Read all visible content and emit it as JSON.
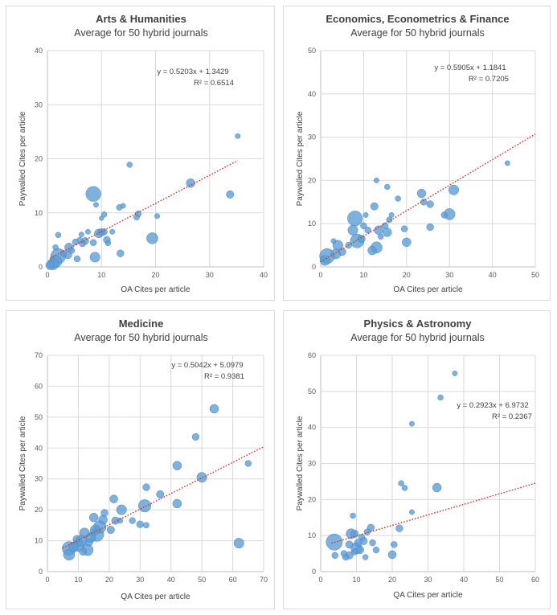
{
  "chart_data": [
    {
      "type": "scatter",
      "title": "Arts & Humanities",
      "subtitle": "Average for 50 hybrid journals",
      "xlabel": "OA Cites per article",
      "ylabel": "Paywalled Cites per article",
      "xlim": [
        0,
        40
      ],
      "ylim": [
        0,
        40
      ],
      "xticks": [
        0,
        10,
        20,
        30,
        40
      ],
      "yticks": [
        0,
        10,
        20,
        30,
        40
      ],
      "grid": true,
      "trendline": {
        "slope": 0.5203,
        "intercept": 1.3429,
        "x_range": [
          0.5,
          35.2
        ]
      },
      "equation": "y = 0.5203x + 1.3429",
      "r_squared": "R² = 0.6514",
      "points": [
        {
          "x": 35.2,
          "y": 24.2,
          "s": 1
        },
        {
          "x": 26.5,
          "y": 15.5,
          "s": 2.5
        },
        {
          "x": 33.8,
          "y": 13.4,
          "s": 2
        },
        {
          "x": 15.2,
          "y": 18.9,
          "s": 1.2
        },
        {
          "x": 8.5,
          "y": 13.5,
          "s": 5
        },
        {
          "x": 16.8,
          "y": 9.8,
          "s": 1.5
        },
        {
          "x": 16.5,
          "y": 9.2,
          "s": 1.3
        },
        {
          "x": 20.3,
          "y": 9.4,
          "s": 1
        },
        {
          "x": 19.4,
          "y": 5.3,
          "s": 3.5
        },
        {
          "x": 13.3,
          "y": 11.0,
          "s": 1.3
        },
        {
          "x": 14.0,
          "y": 11.3,
          "s": 1
        },
        {
          "x": 9.5,
          "y": 6.2,
          "s": 2.5
        },
        {
          "x": 10.0,
          "y": 6.4,
          "s": 2
        },
        {
          "x": 10.5,
          "y": 6.5,
          "s": 1.5
        },
        {
          "x": 11.0,
          "y": 5.0,
          "s": 1.8
        },
        {
          "x": 11.2,
          "y": 4.4,
          "s": 1.2
        },
        {
          "x": 13.5,
          "y": 2.5,
          "s": 1.8
        },
        {
          "x": 8.8,
          "y": 1.8,
          "s": 3
        },
        {
          "x": 8.5,
          "y": 4.5,
          "s": 1.5
        },
        {
          "x": 9.0,
          "y": 11.5,
          "s": 1
        },
        {
          "x": 10.5,
          "y": 9.7,
          "s": 1.2
        },
        {
          "x": 10.0,
          "y": 9.0,
          "s": 0.8
        },
        {
          "x": 7.0,
          "y": 4.8,
          "s": 1.8
        },
        {
          "x": 6.5,
          "y": 4.3,
          "s": 1.5
        },
        {
          "x": 6.0,
          "y": 5.0,
          "s": 1.2
        },
        {
          "x": 5.2,
          "y": 4.6,
          "s": 1.5
        },
        {
          "x": 4.0,
          "y": 3.6,
          "s": 2.5
        },
        {
          "x": 3.8,
          "y": 2.2,
          "s": 2
        },
        {
          "x": 5.5,
          "y": 1.5,
          "s": 1.5
        },
        {
          "x": 2.0,
          "y": 2.0,
          "s": 5
        },
        {
          "x": 1.5,
          "y": 1.0,
          "s": 4
        },
        {
          "x": 1.0,
          "y": 0.5,
          "s": 3.5
        },
        {
          "x": 0.5,
          "y": 0.3,
          "s": 2.5
        },
        {
          "x": 2.0,
          "y": 5.9,
          "s": 1.2
        },
        {
          "x": 1.5,
          "y": 3.6,
          "s": 1.2
        },
        {
          "x": 3.0,
          "y": 2.5,
          "s": 1.5
        },
        {
          "x": 6.3,
          "y": 6.0,
          "s": 1
        },
        {
          "x": 12.0,
          "y": 6.5,
          "s": 1
        },
        {
          "x": 7.5,
          "y": 6.5,
          "s": 1
        },
        {
          "x": 4.5,
          "y": 3.0,
          "s": 1.3
        }
      ]
    },
    {
      "type": "scatter",
      "title": "Economics, Econometrics & Finance",
      "subtitle": "Average for 50 hybrid journals",
      "xlabel": "OA Cites per article",
      "ylabel": "Paywalled Cites per article",
      "xlim": [
        0,
        50
      ],
      "ylim": [
        0,
        50
      ],
      "xticks": [
        0,
        10,
        20,
        30,
        40,
        50
      ],
      "yticks": [
        0,
        10,
        20,
        30,
        40,
        50
      ],
      "grid": true,
      "trendline": {
        "slope": 0.5905,
        "intercept": 1.1841,
        "x_range": [
          0,
          50
        ]
      },
      "equation": "y = 0.5905x + 1.1841",
      "r_squared": "R² = 0.7205",
      "points": [
        {
          "x": 43.5,
          "y": 24.0,
          "s": 1
        },
        {
          "x": 31.0,
          "y": 17.8,
          "s": 3
        },
        {
          "x": 30.0,
          "y": 12.2,
          "s": 3.5
        },
        {
          "x": 28.8,
          "y": 12.0,
          "s": 1.5
        },
        {
          "x": 25.5,
          "y": 14.5,
          "s": 1.8
        },
        {
          "x": 23.5,
          "y": 17.0,
          "s": 2.5
        },
        {
          "x": 24.0,
          "y": 15.0,
          "s": 1.5
        },
        {
          "x": 25.5,
          "y": 9.2,
          "s": 1.8
        },
        {
          "x": 20.0,
          "y": 5.7,
          "s": 2.5
        },
        {
          "x": 19.5,
          "y": 8.8,
          "s": 1.5
        },
        {
          "x": 18.0,
          "y": 15.8,
          "s": 1.2
        },
        {
          "x": 15.5,
          "y": 18.5,
          "s": 1.2
        },
        {
          "x": 13.0,
          "y": 20.0,
          "s": 1
        },
        {
          "x": 12.5,
          "y": 14.0,
          "s": 2
        },
        {
          "x": 16.0,
          "y": 10.9,
          "s": 1.3
        },
        {
          "x": 15.0,
          "y": 9.5,
          "s": 1.5
        },
        {
          "x": 15.5,
          "y": 8.0,
          "s": 2.5
        },
        {
          "x": 13.0,
          "y": 4.5,
          "s": 3.5
        },
        {
          "x": 12.0,
          "y": 3.8,
          "s": 2.5
        },
        {
          "x": 13.5,
          "y": 8.5,
          "s": 2.5
        },
        {
          "x": 10.0,
          "y": 9.5,
          "s": 1.5
        },
        {
          "x": 8.0,
          "y": 11.2,
          "s": 5
        },
        {
          "x": 8.5,
          "y": 6.0,
          "s": 4.5
        },
        {
          "x": 9.5,
          "y": 6.5,
          "s": 2
        },
        {
          "x": 7.5,
          "y": 8.5,
          "s": 3
        },
        {
          "x": 6.5,
          "y": 5.0,
          "s": 1.5
        },
        {
          "x": 4.0,
          "y": 5.0,
          "s": 3
        },
        {
          "x": 3.5,
          "y": 3.0,
          "s": 3
        },
        {
          "x": 5.0,
          "y": 3.5,
          "s": 2
        },
        {
          "x": 1.5,
          "y": 2.5,
          "s": 5
        },
        {
          "x": 1.0,
          "y": 1.5,
          "s": 3
        },
        {
          "x": 11.0,
          "y": 8.5,
          "s": 1.5
        },
        {
          "x": 14.0,
          "y": 7.0,
          "s": 1.2
        },
        {
          "x": 16.5,
          "y": 12.0,
          "s": 1
        },
        {
          "x": 10.5,
          "y": 12.0,
          "s": 1
        },
        {
          "x": 3.0,
          "y": 6.0,
          "s": 1
        }
      ]
    },
    {
      "type": "scatter",
      "title": "Medicine",
      "subtitle": "Average for 50 hybrid journals",
      "xlabel": "QA Cites per article",
      "ylabel": "Paywalled Cites per article",
      "xlim": [
        0,
        70
      ],
      "ylim": [
        0,
        70
      ],
      "xticks": [
        0,
        10,
        20,
        30,
        40,
        50,
        60,
        70
      ],
      "yticks": [
        0,
        10,
        20,
        30,
        40,
        50,
        60,
        70
      ],
      "grid": true,
      "trendline": {
        "slope": 0.5042,
        "intercept": 5.0979,
        "x_range": [
          5,
          70
        ]
      },
      "equation": "y = 0.5042x + 5.0979",
      "r_squared": "R² = 0.9381",
      "points": [
        {
          "x": 54.0,
          "y": 52.7,
          "s": 2.5
        },
        {
          "x": 48.0,
          "y": 43.6,
          "s": 1.8
        },
        {
          "x": 65.0,
          "y": 35.0,
          "s": 1.5
        },
        {
          "x": 62.0,
          "y": 9.2,
          "s": 3
        },
        {
          "x": 50.0,
          "y": 30.5,
          "s": 3
        },
        {
          "x": 42.0,
          "y": 34.3,
          "s": 2.5
        },
        {
          "x": 42.0,
          "y": 22.0,
          "s": 2.5
        },
        {
          "x": 36.5,
          "y": 25.0,
          "s": 2
        },
        {
          "x": 32.0,
          "y": 27.3,
          "s": 1.8
        },
        {
          "x": 31.5,
          "y": 21.3,
          "s": 4
        },
        {
          "x": 32.0,
          "y": 15.0,
          "s": 1.3
        },
        {
          "x": 30.0,
          "y": 15.3,
          "s": 1.8
        },
        {
          "x": 27.5,
          "y": 16.5,
          "s": 1.5
        },
        {
          "x": 24.0,
          "y": 20.0,
          "s": 3
        },
        {
          "x": 21.5,
          "y": 23.5,
          "s": 2.2
        },
        {
          "x": 22.0,
          "y": 16.5,
          "s": 2
        },
        {
          "x": 20.5,
          "y": 13.5,
          "s": 2
        },
        {
          "x": 18.5,
          "y": 19.0,
          "s": 1.8
        },
        {
          "x": 18.0,
          "y": 16.8,
          "s": 2.5
        },
        {
          "x": 17.0,
          "y": 14.5,
          "s": 4
        },
        {
          "x": 16.0,
          "y": 12.0,
          "s": 4.5
        },
        {
          "x": 15.0,
          "y": 17.5,
          "s": 2.5
        },
        {
          "x": 14.0,
          "y": 11.0,
          "s": 3
        },
        {
          "x": 13.0,
          "y": 7.0,
          "s": 3.5
        },
        {
          "x": 12.0,
          "y": 12.5,
          "s": 3
        },
        {
          "x": 11.0,
          "y": 10.0,
          "s": 3.5
        },
        {
          "x": 10.0,
          "y": 8.5,
          "s": 4
        },
        {
          "x": 9.5,
          "y": 10.5,
          "s": 2
        },
        {
          "x": 8.5,
          "y": 8.0,
          "s": 3
        },
        {
          "x": 7.0,
          "y": 7.5,
          "s": 4.5
        },
        {
          "x": 7.0,
          "y": 5.5,
          "s": 3.5
        },
        {
          "x": 15.5,
          "y": 13.5,
          "s": 3
        },
        {
          "x": 13.5,
          "y": 9.5,
          "s": 2
        },
        {
          "x": 23.5,
          "y": 16.5,
          "s": 1.2
        },
        {
          "x": 11.5,
          "y": 6.5,
          "s": 2
        }
      ]
    },
    {
      "type": "scatter",
      "title": "Physics & Astronomy",
      "subtitle": "Average for 50 hybrid journals",
      "xlabel": "QA Cites per article",
      "ylabel": "Paywalled Cites per article",
      "xlim": [
        0,
        60
      ],
      "ylim": [
        0,
        60
      ],
      "xticks": [
        0,
        10,
        20,
        30,
        40,
        50,
        60
      ],
      "yticks": [
        0,
        10,
        20,
        30,
        40,
        50,
        60
      ],
      "grid": true,
      "trendline": {
        "slope": 0.2923,
        "intercept": 6.9732,
        "x_range": [
          3,
          60
        ]
      },
      "equation": "y = 0.2923x + 6.9732",
      "r_squared": "R² = 0.2367",
      "points": [
        {
          "x": 37.5,
          "y": 55.0,
          "s": 1
        },
        {
          "x": 33.5,
          "y": 48.3,
          "s": 1.2
        },
        {
          "x": 25.5,
          "y": 41.0,
          "s": 1
        },
        {
          "x": 22.5,
          "y": 24.5,
          "s": 1.2
        },
        {
          "x": 23.5,
          "y": 23.2,
          "s": 1.2
        },
        {
          "x": 32.5,
          "y": 23.3,
          "s": 2.5
        },
        {
          "x": 25.5,
          "y": 16.5,
          "s": 1
        },
        {
          "x": 9.0,
          "y": 15.5,
          "s": 1.2
        },
        {
          "x": 22.0,
          "y": 12.0,
          "s": 1.8
        },
        {
          "x": 20.5,
          "y": 7.5,
          "s": 1.5
        },
        {
          "x": 20.0,
          "y": 4.7,
          "s": 2.2
        },
        {
          "x": 15.5,
          "y": 6.0,
          "s": 1.5
        },
        {
          "x": 14.0,
          "y": 12.2,
          "s": 1.8
        },
        {
          "x": 13.0,
          "y": 11.0,
          "s": 1.5
        },
        {
          "x": 12.0,
          "y": 8.5,
          "s": 2
        },
        {
          "x": 11.0,
          "y": 6.0,
          "s": 2
        },
        {
          "x": 10.0,
          "y": 6.5,
          "s": 3.5
        },
        {
          "x": 9.5,
          "y": 10.5,
          "s": 2
        },
        {
          "x": 8.5,
          "y": 10.5,
          "s": 3
        },
        {
          "x": 8.0,
          "y": 7.5,
          "s": 2
        },
        {
          "x": 8.0,
          "y": 4.5,
          "s": 2
        },
        {
          "x": 7.0,
          "y": 4.0,
          "s": 1.5
        },
        {
          "x": 6.5,
          "y": 5.0,
          "s": 1.5
        },
        {
          "x": 4.0,
          "y": 4.5,
          "s": 1.5
        },
        {
          "x": 3.8,
          "y": 8.2,
          "s": 5.5
        },
        {
          "x": 10.5,
          "y": 8.0,
          "s": 2
        },
        {
          "x": 12.5,
          "y": 4.0,
          "s": 1.2
        },
        {
          "x": 14.5,
          "y": 8.0,
          "s": 1.5
        },
        {
          "x": 11.5,
          "y": 9.5,
          "s": 1.5
        },
        {
          "x": 9.5,
          "y": 5.5,
          "s": 1.5
        }
      ]
    }
  ],
  "colors": {
    "bubble_fill": "#5b9bd5",
    "bubble_stroke": "#4a86c0",
    "trendline": "#e0301e",
    "grid": "#d9d9d9",
    "panel_border": "#d9d9d9"
  }
}
